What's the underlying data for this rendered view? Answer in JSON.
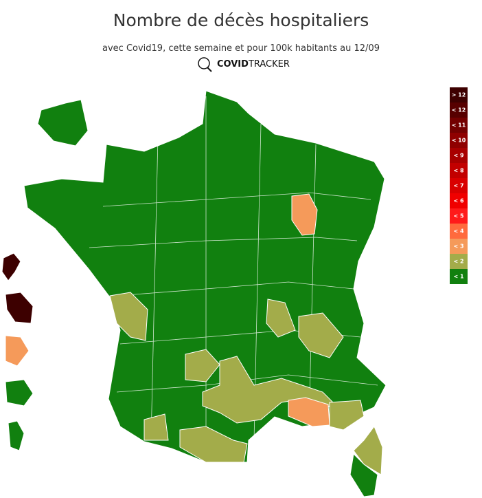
{
  "header": {
    "title": "Nombre de décès hospitaliers",
    "subtitle": "avec Covid19, cette semaine et pour 100k habitants au 12/09",
    "logo_bold": "COVID",
    "logo_light": "TRACKER"
  },
  "legend": {
    "items": [
      {
        "label": "> 12",
        "color": "#3d0000"
      },
      {
        "label": "< 12",
        "color": "#570000"
      },
      {
        "label": "< 11",
        "color": "#730000"
      },
      {
        "label": "< 10",
        "color": "#8f0000"
      },
      {
        "label": "< 9",
        "color": "#a80000"
      },
      {
        "label": "< 8",
        "color": "#c20000"
      },
      {
        "label": "< 7",
        "color": "#d90000"
      },
      {
        "label": "< 6",
        "color": "#f00000"
      },
      {
        "label": "< 5",
        "color": "#ff1a1a"
      },
      {
        "label": "< 4",
        "color": "#ff6a3d"
      },
      {
        "label": "< 3",
        "color": "#f59a5a"
      },
      {
        "label": "< 2",
        "color": "#a3ac4a"
      },
      {
        "label": "< 1",
        "color": "#11800f"
      }
    ]
  }
}
